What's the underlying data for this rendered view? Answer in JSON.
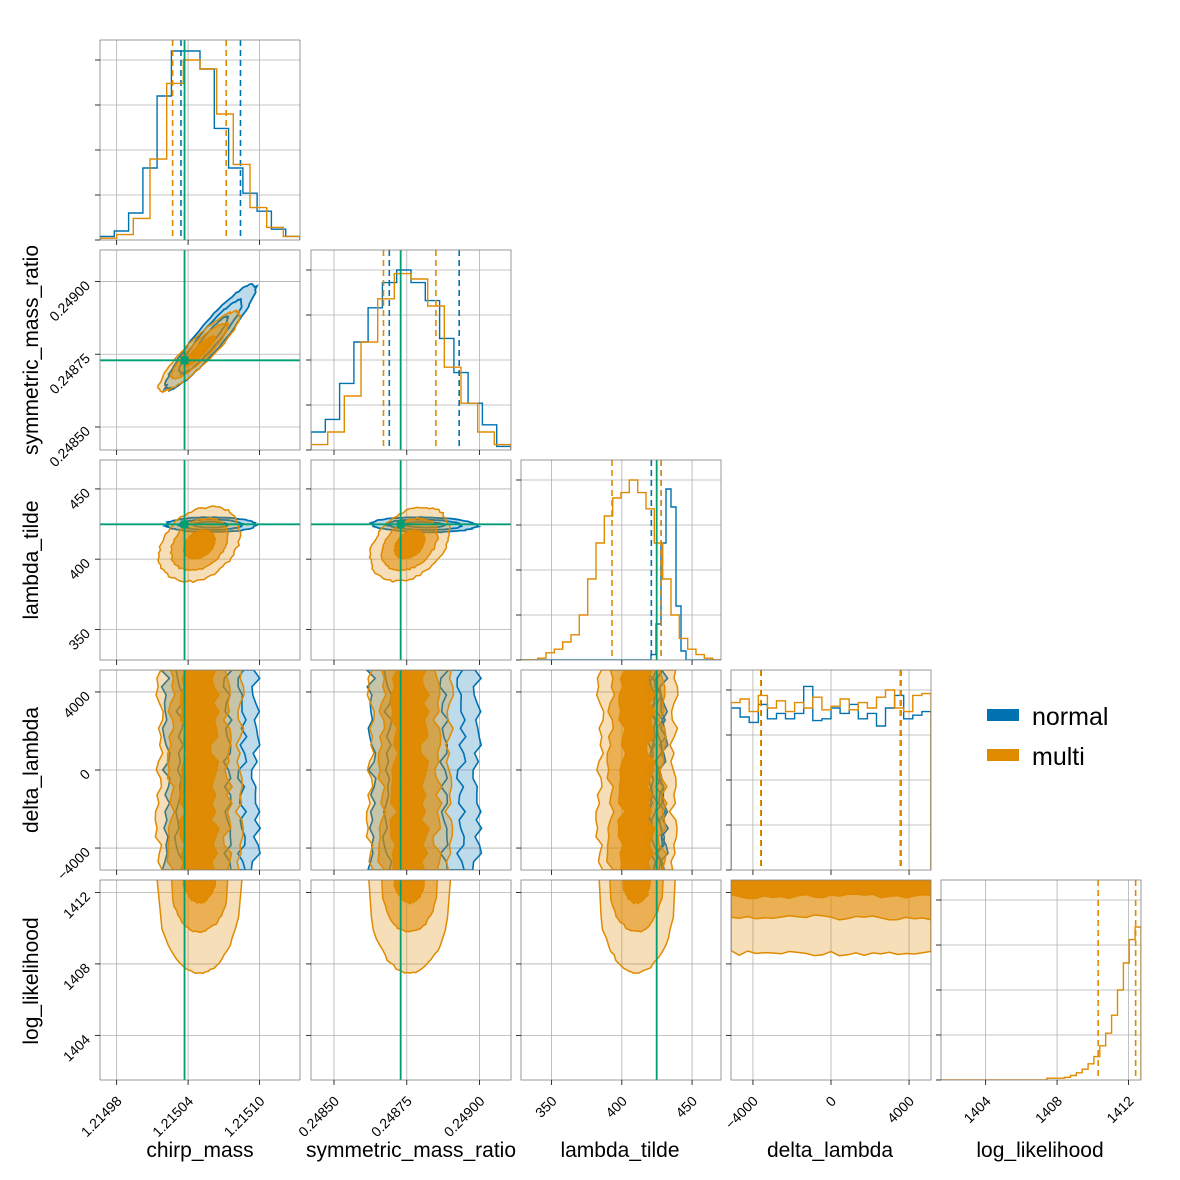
{
  "figure": {
    "legend": {
      "position": "right",
      "entries": [
        {
          "name": "normal",
          "color": "#0072b2"
        },
        {
          "name": "multi",
          "color": "#e08a00"
        }
      ]
    }
  },
  "chart_data": {
    "type": "corner",
    "grid": true,
    "truth_color": "#009e73",
    "parameters": [
      {
        "name": "chirp_mass",
        "range": [
          1.214966,
          1.215134
        ],
        "ticks": [
          1.21498,
          1.21504,
          1.2151
        ],
        "tick_labels": [
          "1.21498",
          "1.21504",
          "1.21510"
        ],
        "truth": 1.215037
      },
      {
        "name": "symmetric_mass_ratio",
        "range": [
          0.248421,
          0.249108
        ],
        "ticks": [
          0.2485,
          0.24875,
          0.249
        ],
        "tick_labels": [
          "0.24850",
          "0.24875",
          "0.24900"
        ],
        "truth": 0.248729
      },
      {
        "name": "lambda_tilde",
        "range": [
          328.2,
          470.6
        ],
        "ticks": [
          350,
          400,
          450
        ],
        "tick_labels": [
          "350",
          "400",
          "450"
        ],
        "truth": 424.8
      },
      {
        "name": "delta_lambda",
        "range": [
          -5125,
          5125
        ],
        "ticks": [
          -4000,
          0,
          4000
        ],
        "tick_labels": [
          "−4000",
          "0",
          "4000"
        ],
        "truth": null
      },
      {
        "name": "log_likelihood",
        "range": [
          1401.5,
          1412.7
        ],
        "ticks": [
          1404,
          1408,
          1412
        ],
        "tick_labels": [
          "1404",
          "1408",
          "1412"
        ],
        "truth": null
      }
    ],
    "series": [
      {
        "name": "normal",
        "color": "#0072b2",
        "quantiles": {
          "chirp_mass": [
            1.215034,
            1.215084
          ],
          "symmetric_mass_ratio": [
            0.24869,
            0.24893
          ],
          "lambda_tilde": [
            421.0,
            428.0
          ],
          "delta_lambda": [
            -3580,
            3580
          ],
          "log_likelihood": []
        },
        "marginals": {
          "chirp_mass": [
            0.02,
            0.05,
            0.15,
            0.4,
            0.8,
            1.05,
            1.05,
            0.95,
            0.62,
            0.4,
            0.26,
            0.16,
            0.06,
            0.02
          ],
          "symmetric_mass_ratio": [
            0.1,
            0.17,
            0.37,
            0.6,
            0.79,
            0.93,
            1.0,
            0.93,
            0.83,
            0.62,
            0.43,
            0.26,
            0.14,
            0.02
          ],
          "lambda_tilde": [
            0.0,
            0.0,
            0.0,
            0.0,
            0.0,
            0.0,
            0.0,
            0.0,
            0.0,
            0.0,
            0.0,
            0.0,
            0.0,
            0.0,
            0.0,
            0.0,
            0.0,
            0.0,
            0.0,
            0.0,
            0.0,
            0.0,
            0.0,
            0.0,
            0.0,
            0.0,
            0.03,
            0.2,
            0.65,
            0.95,
            0.85,
            0.3,
            0.05,
            0.0,
            0.0,
            0.0,
            0.0,
            0.0,
            0.0,
            0.0
          ],
          "delta_lambda": [
            0.9,
            0.85,
            0.82,
            0.92,
            0.84,
            0.87,
            0.84,
            0.87,
            1.02,
            0.83,
            0.84,
            0.9,
            0.87,
            0.92,
            0.84,
            0.87,
            0.8,
            0.9,
            0.97,
            0.84,
            0.86,
            0.88
          ],
          "log_likelihood": []
        },
        "contour_levels": 3
      },
      {
        "name": "multi",
        "color": "#e08a00",
        "quantiles": {
          "chirp_mass": [
            1.215027,
            1.215072
          ],
          "symmetric_mass_ratio": [
            0.24867,
            0.24885
          ],
          "lambda_tilde": [
            393.0,
            428.0
          ],
          "delta_lambda": [
            -3600,
            3550
          ],
          "log_likelihood": [
            1410.3,
            1412.4
          ]
        },
        "marginals": {
          "chirp_mass": [
            0.01,
            0.03,
            0.12,
            0.45,
            0.87,
            1.0,
            0.95,
            0.7,
            0.42,
            0.18,
            0.07,
            0.02
          ],
          "symmetric_mass_ratio": [
            0.03,
            0.1,
            0.3,
            0.6,
            0.84,
            0.98,
            0.95,
            0.8,
            0.46,
            0.26,
            0.1,
            0.03
          ],
          "lambda_tilde": [
            0.0,
            0.0,
            0.01,
            0.04,
            0.06,
            0.1,
            0.14,
            0.25,
            0.45,
            0.65,
            0.8,
            0.9,
            0.93,
            1.0,
            0.93,
            0.84,
            0.65,
            0.45,
            0.25,
            0.12,
            0.06,
            0.03,
            0.01,
            0.0
          ],
          "delta_lambda": [
            0.93,
            0.95,
            0.88,
            0.97,
            0.9,
            0.94,
            0.88,
            0.93,
            0.9,
            0.96,
            0.89,
            0.91,
            0.95,
            0.89,
            0.93,
            0.9,
            0.96,
            1.0,
            0.9,
            0.88,
            0.97,
            0.98
          ],
          "log_likelihood": [
            0.0,
            0.0,
            0.0,
            0.0,
            0.0,
            0.0,
            0.0,
            0.0,
            0.0,
            0.0,
            0.0,
            0.0,
            0.0,
            0.0,
            0.0,
            0.0,
            0.0,
            0.0,
            0.01,
            0.01,
            0.01,
            0.015,
            0.025,
            0.04,
            0.06,
            0.09,
            0.13,
            0.19,
            0.26,
            0.36,
            0.5,
            0.65,
            0.78,
            0.85
          ]
        },
        "contour_levels": 3
      }
    ],
    "panel_labels": {
      "x": [
        "chirp_mass",
        "symmetric_mass_ratio",
        "lambda_tilde",
        "delta_lambda",
        "log_likelihood"
      ],
      "y": [
        "symmetric_mass_ratio",
        "lambda_tilde",
        "delta_lambda",
        "log_likelihood"
      ]
    }
  }
}
